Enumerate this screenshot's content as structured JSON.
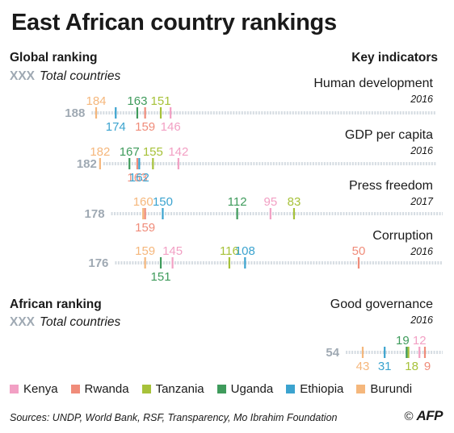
{
  "title": "East African country rankings",
  "sections": {
    "global_label": "Global ranking",
    "african_label": "African ranking",
    "key_indicators_label": "Key indicators",
    "total_placeholder": "XXX",
    "total_text": "Total countries"
  },
  "colors": {
    "Kenya": "#f2a0c4",
    "Rwanda": "#f08c7a",
    "Tanzania": "#a7c23a",
    "Uganda": "#3f9b5c",
    "Ethiopia": "#3ba3cf",
    "Burundi": "#f5b77c",
    "axis": "#d5dce2",
    "total": "#9fa9b3"
  },
  "legend": [
    "Kenya",
    "Rwanda",
    "Tanzania",
    "Uganda",
    "Ethiopia",
    "Burundi"
  ],
  "sources": "Sources: UNDP, World Bank, RSF, Transparency, Mo Ibrahim Foundation",
  "logo": {
    "copyright": "©",
    "text": "AFP"
  },
  "chart_data": [
    {
      "type": "dot-strip",
      "indicator": "Human development",
      "year": "2016",
      "scale": "global",
      "total": 188,
      "values": {
        "Burundi": 184,
        "Ethiopia": 174,
        "Uganda": 163,
        "Rwanda": 159,
        "Tanzania": 151,
        "Kenya": 146
      }
    },
    {
      "type": "dot-strip",
      "indicator": "GDP per capita",
      "year": "2016",
      "scale": "global",
      "total": 182,
      "values": {
        "Burundi": 182,
        "Uganda": 167,
        "Rwanda": 163,
        "Ethiopia": 162,
        "Tanzania": 155,
        "Kenya": 142
      }
    },
    {
      "type": "dot-strip",
      "indicator": "Press freedom",
      "year": "2017",
      "scale": "global",
      "total": 178,
      "values": {
        "Burundi": 160,
        "Rwanda": 159,
        "Ethiopia": 150,
        "Uganda": 112,
        "Kenya": 95,
        "Tanzania": 83
      }
    },
    {
      "type": "dot-strip",
      "indicator": "Corruption",
      "year": "2016",
      "scale": "global",
      "total": 176,
      "values": {
        "Burundi": 159,
        "Uganda": 151,
        "Kenya": 145,
        "Tanzania": 116,
        "Ethiopia": 108,
        "Rwanda": 50
      }
    },
    {
      "type": "dot-strip",
      "indicator": "Good governance",
      "year": "2016",
      "scale": "african",
      "total": 54,
      "values": {
        "Burundi": 43,
        "Ethiopia": 31,
        "Uganda": 19,
        "Tanzania": 18,
        "Kenya": 12,
        "Rwanda": 9
      }
    }
  ]
}
